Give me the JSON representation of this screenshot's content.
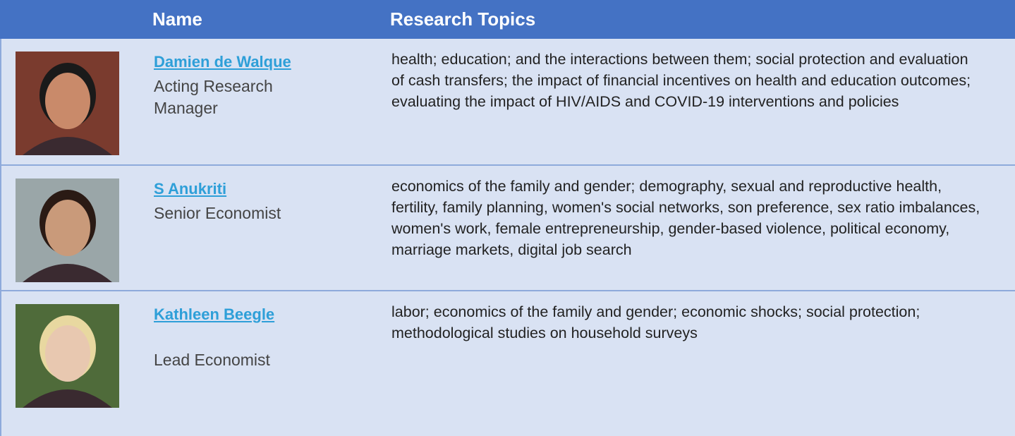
{
  "header": {
    "columns": [
      "Name",
      "Research Topics"
    ]
  },
  "rows": [
    {
      "name": "Damien de Walque",
      "role": "Acting Research Manager",
      "topics": "health; education; and the interactions between them; social protection and evaluation of cash transfers; the impact of financial incentives on health and education outcomes; evaluating the impact of HIV/AIDS and COVID-19 interventions and policies"
    },
    {
      "name": "S Anukriti",
      "role": "Senior Economist",
      "topics": "economics of the family and gender; demography, sexual and reproductive health, fertility, family planning, women's social networks, son preference, sex ratio imbalances, women's work, female entrepreneurship, gender-based violence, political economy, marriage markets, digital job search"
    },
    {
      "name": "Kathleen Beegle",
      "role": "Lead Economist",
      "topics": "labor; economics of the family and gender; economic shocks; social protection; methodological studies on household surveys"
    }
  ]
}
